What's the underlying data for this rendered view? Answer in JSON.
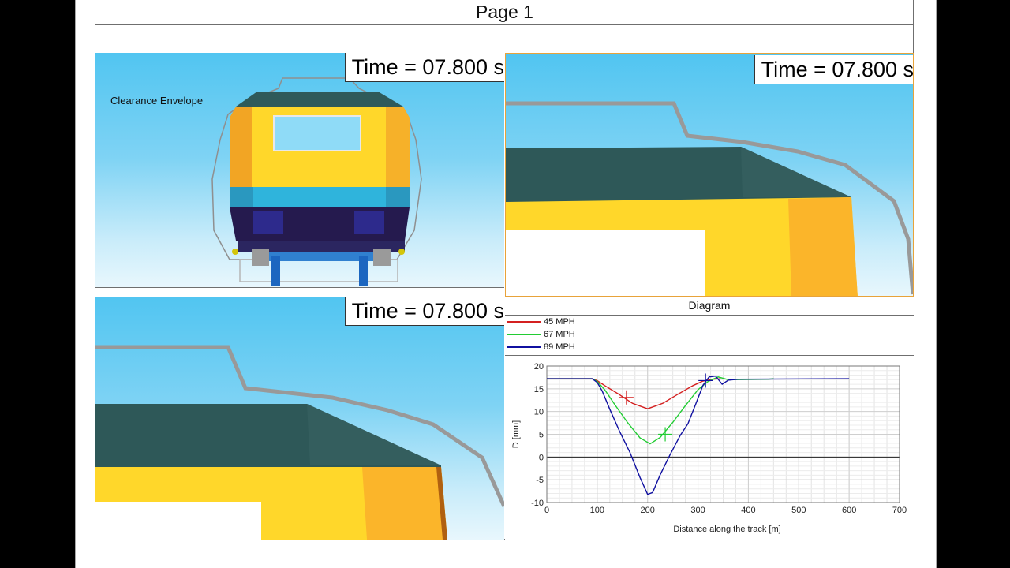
{
  "page": {
    "title": "Page 1"
  },
  "views": {
    "front": {
      "time_label": "Time = 07.800 s",
      "annotation": "Clearance Envelope"
    },
    "top_right": {
      "time_label": "Time = 07.800 s"
    },
    "bottom_left": {
      "time_label": "Time = 07.800 s"
    }
  },
  "diagram": {
    "title": "Diagram",
    "legend": [
      {
        "name": "45 MPH",
        "color": "#d42020"
      },
      {
        "name": "67 MPH",
        "color": "#22cc33"
      },
      {
        "name": "89 MPH",
        "color": "#1010a0"
      }
    ]
  },
  "chart_data": {
    "type": "line",
    "title": "",
    "xlabel": "Distance along the track [m]",
    "ylabel": "D [mm]",
    "xlim": [
      0,
      700
    ],
    "ylim": [
      -10,
      20
    ],
    "xticks": [
      0,
      100,
      200,
      300,
      400,
      500,
      600,
      700
    ],
    "yticks": [
      -10,
      -5,
      0,
      5,
      10,
      15,
      20
    ],
    "grid": true,
    "series": [
      {
        "name": "45 MPH",
        "color": "#d42020",
        "x": [
          0,
          90,
          100,
          115,
          140,
          170,
          200,
          230,
          260,
          290,
          310,
          330,
          345
        ],
        "y": [
          17.2,
          17.2,
          16.8,
          15.7,
          14.0,
          11.8,
          10.6,
          11.8,
          13.8,
          15.7,
          16.7,
          17.1,
          17.2
        ]
      },
      {
        "name": "67 MPH",
        "color": "#22cc33",
        "x": [
          0,
          90,
          100,
          115,
          135,
          160,
          185,
          205,
          225,
          250,
          275,
          300,
          320,
          340,
          360,
          440,
          450
        ],
        "y": [
          17.2,
          17.2,
          16.6,
          14.8,
          11.5,
          7.6,
          4.2,
          2.9,
          4.3,
          7.6,
          11.3,
          14.8,
          16.6,
          17.6,
          17.0,
          17.1,
          17.2
        ]
      },
      {
        "name": "89 MPH",
        "color": "#1010a0",
        "x": [
          0,
          90,
          100,
          110,
          125,
          145,
          165,
          185,
          200,
          210,
          225,
          245,
          265,
          280,
          295,
          310,
          322,
          335,
          348,
          360,
          380,
          600
        ],
        "y": [
          17.2,
          17.2,
          16.4,
          14.5,
          10.5,
          5.5,
          1.0,
          -4.5,
          -8.2,
          -7.8,
          -3.9,
          0.6,
          4.8,
          7.3,
          11.5,
          15.8,
          17.6,
          17.8,
          16.0,
          16.9,
          17.1,
          17.2
        ]
      }
    ],
    "markers": [
      {
        "series": "45 MPH",
        "x": 158,
        "y": 13.1
      },
      {
        "series": "67 MPH",
        "x": 235,
        "y": 5.0
      },
      {
        "series": "89 MPH",
        "x": 315,
        "y": 16.8
      }
    ]
  }
}
